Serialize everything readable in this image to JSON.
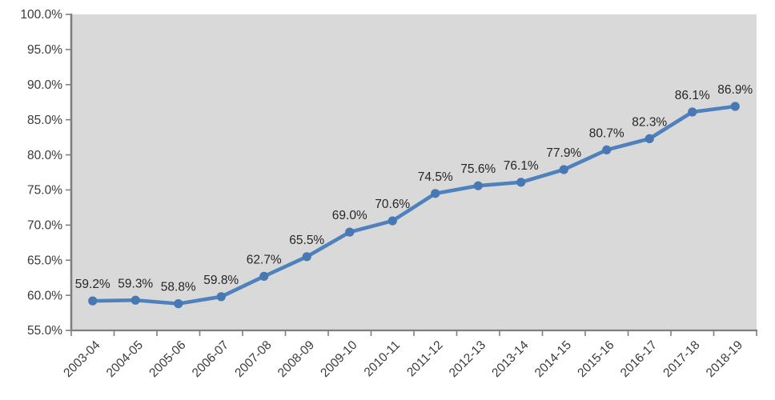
{
  "chart_data": {
    "type": "line",
    "title": "",
    "xlabel": "",
    "ylabel": "",
    "categories": [
      "2003-04",
      "2004-05",
      "2005-06",
      "2006-07",
      "2007-08",
      "2008-09",
      "2009-10",
      "2010-11",
      "2011-12",
      "2012-13",
      "2013-14",
      "2014-15",
      "2015-16",
      "2016-17",
      "2017-18",
      "2018-19"
    ],
    "series": [
      {
        "name": "percentage",
        "values": [
          59.2,
          59.3,
          58.8,
          59.8,
          62.7,
          65.5,
          69.0,
          70.6,
          74.5,
          75.6,
          76.1,
          77.9,
          80.7,
          82.3,
          86.1,
          86.9
        ],
        "data_labels": [
          "59.2%",
          "59.3%",
          "58.8%",
          "59.8%",
          "62.7%",
          "65.5%",
          "69.0%",
          "70.6%",
          "74.5%",
          "75.6%",
          "76.1%",
          "77.9%",
          "80.7%",
          "82.3%",
          "86.1%",
          "86.9%"
        ]
      }
    ],
    "ylim": [
      55,
      100
    ],
    "ytick_step": 5,
    "ytick_labels": [
      "100.0%",
      "95.0%",
      "90.0%",
      "85.0%",
      "80.0%",
      "75.0%",
      "70.0%",
      "65.0%",
      "60.0%",
      "55.0%"
    ],
    "ytick_values": [
      100,
      95,
      90,
      85,
      80,
      75,
      70,
      65,
      60,
      55
    ],
    "grid": false,
    "legend": "none",
    "marker": "circle",
    "colors": {
      "line": "#4F81BD",
      "marker": "#4878B4",
      "plot_bg": "#D9D9D9",
      "axis": "#7F7F7F",
      "tick": "#7F7F7F",
      "data_label_text": "#262626",
      "axis_label_text": "#3A3A3A",
      "page_bg": "#FFFFFF"
    }
  }
}
